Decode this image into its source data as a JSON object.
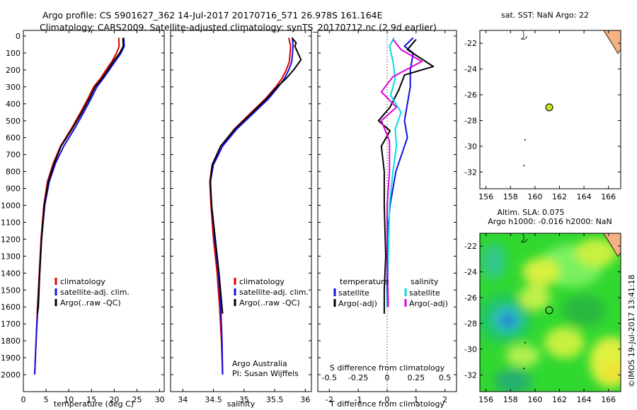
{
  "title": {
    "line1": "Argo profile: CS 5901627_362 14-Jul-2017 20170716_571 26.978S 161.164E",
    "line2": "Climatology: CARS2009. Satellite-adjusted climatology: synTS_20170712.nc (2.9d earlier)"
  },
  "credit": {
    "line1": "Argo Australia",
    "line2": "PI: Susan Wijffels",
    "watermark": "©IMOS 19-Jul-2017 13:41:18"
  },
  "colors": {
    "climatology": "#e00000",
    "satellite": "#1010e0",
    "argo": "#000000",
    "sat_salinity": "#00e0e0",
    "argo_salinity": "#e000e0",
    "land": "#f4b183"
  },
  "chart_data": [
    {
      "type": "line",
      "xlabel": "temperature (deg C)",
      "xlim": [
        0,
        31
      ],
      "xticks": [
        "0",
        "5",
        "10",
        "15",
        "20",
        "25",
        "30"
      ],
      "ylim": [
        0,
        2050
      ],
      "yticks": [
        "0",
        "100",
        "200",
        "300",
        "400",
        "500",
        "600",
        "700",
        "800",
        "900",
        "1000",
        "1100",
        "1200",
        "1300",
        "1400",
        "1500",
        "1600",
        "1700",
        "1800",
        "1900",
        "2000"
      ],
      "legend": [
        "climatology",
        "satellite-adj. clim.",
        "Argo(..raw -QC)"
      ],
      "series": [
        {
          "name": "climatology",
          "points": [
            [
              21,
              10
            ],
            [
              21.1,
              60
            ],
            [
              20.5,
              100
            ],
            [
              19.5,
              150
            ],
            [
              18.2,
              200
            ],
            [
              17,
              250
            ],
            [
              15.5,
              300
            ],
            [
              14.2,
              370
            ],
            [
              12.6,
              450
            ],
            [
              10.5,
              550
            ],
            [
              8.2,
              650
            ],
            [
              6.6,
              750
            ],
            [
              5.3,
              860
            ],
            [
              4.5,
              1000
            ],
            [
              3.9,
              1200
            ],
            [
              3.5,
              1400
            ],
            [
              3.1,
              1600
            ],
            [
              2.8,
              1800
            ],
            [
              2.5,
              2000
            ]
          ]
        },
        {
          "name": "satellite-adj. clim.",
          "points": [
            [
              22.1,
              10
            ],
            [
              22.2,
              60
            ],
            [
              21.5,
              100
            ],
            [
              20.2,
              150
            ],
            [
              18.9,
              200
            ],
            [
              17.6,
              250
            ],
            [
              16.2,
              300
            ],
            [
              14.9,
              370
            ],
            [
              13.3,
              450
            ],
            [
              11.2,
              550
            ],
            [
              8.9,
              650
            ],
            [
              7.1,
              750
            ],
            [
              5.7,
              860
            ],
            [
              4.7,
              1000
            ],
            [
              4.0,
              1200
            ],
            [
              3.6,
              1400
            ],
            [
              3.2,
              1600
            ],
            [
              2.8,
              1800
            ],
            [
              2.5,
              2000
            ]
          ]
        },
        {
          "name": "Argo(..raw -QC)",
          "points": [
            [
              21.9,
              10
            ],
            [
              22,
              60
            ],
            [
              21.2,
              100
            ],
            [
              19.8,
              150
            ],
            [
              18.6,
              200
            ],
            [
              17.3,
              250
            ],
            [
              15.8,
              300
            ],
            [
              14.5,
              370
            ],
            [
              12.9,
              450
            ],
            [
              10.7,
              550
            ],
            [
              8.3,
              650
            ],
            [
              6.8,
              750
            ],
            [
              5.5,
              860
            ],
            [
              4.6,
              1000
            ],
            [
              4.0,
              1200
            ],
            [
              3.6,
              1400
            ],
            [
              3.3,
              1600
            ],
            [
              3.1,
              1640
            ]
          ]
        }
      ]
    },
    {
      "type": "line",
      "xlabel": "salinity",
      "xlim": [
        33.8,
        36.1
      ],
      "xticks": [
        "34",
        "34.5",
        "35",
        "35.5",
        "36"
      ],
      "ylim": [
        0,
        2050
      ],
      "legend": [
        "climatology",
        "satellite-adj. clim.",
        "Argo(..raw -QC)"
      ],
      "series": [
        {
          "name": "climatology",
          "points": [
            [
              35.73,
              10
            ],
            [
              35.76,
              60
            ],
            [
              35.74,
              150
            ],
            [
              35.69,
              200
            ],
            [
              35.62,
              250
            ],
            [
              35.52,
              300
            ],
            [
              35.35,
              370
            ],
            [
              35.12,
              450
            ],
            [
              34.84,
              550
            ],
            [
              34.62,
              650
            ],
            [
              34.48,
              760
            ],
            [
              34.44,
              860
            ],
            [
              34.46,
              1000
            ],
            [
              34.5,
              1200
            ],
            [
              34.56,
              1400
            ],
            [
              34.6,
              1600
            ],
            [
              34.63,
              1800
            ],
            [
              34.65,
              2000
            ]
          ]
        },
        {
          "name": "satellite-adj. clim.",
          "points": [
            [
              35.79,
              10
            ],
            [
              35.8,
              60
            ],
            [
              35.78,
              150
            ],
            [
              35.73,
              200
            ],
            [
              35.66,
              250
            ],
            [
              35.56,
              300
            ],
            [
              35.4,
              370
            ],
            [
              35.17,
              450
            ],
            [
              34.88,
              550
            ],
            [
              34.65,
              650
            ],
            [
              34.5,
              760
            ],
            [
              34.45,
              860
            ],
            [
              34.47,
              1000
            ],
            [
              34.52,
              1200
            ],
            [
              34.58,
              1400
            ],
            [
              34.62,
              1600
            ],
            [
              34.64,
              1800
            ],
            [
              34.65,
              2000
            ]
          ]
        },
        {
          "name": "Argo(..raw -QC)",
          "points": [
            [
              35.78,
              10
            ],
            [
              35.85,
              40
            ],
            [
              35.83,
              60
            ],
            [
              35.93,
              140
            ],
            [
              35.81,
              200
            ],
            [
              35.69,
              250
            ],
            [
              35.54,
              300
            ],
            [
              35.37,
              370
            ],
            [
              35.14,
              450
            ],
            [
              34.85,
              550
            ],
            [
              34.62,
              650
            ],
            [
              34.48,
              760
            ],
            [
              34.45,
              860
            ],
            [
              34.47,
              1000
            ],
            [
              34.53,
              1200
            ],
            [
              34.59,
              1400
            ],
            [
              34.64,
              1600
            ],
            [
              34.65,
              1640
            ]
          ]
        }
      ]
    },
    {
      "type": "line",
      "xlabel": "T difference from climatology",
      "xlabel2": "S difference from climatology",
      "xlim": [
        -2.4,
        2.4
      ],
      "xticks": [
        "-2",
        "-1",
        "0",
        "1",
        "2"
      ],
      "xticks2": [
        "-0.5",
        "-0.25",
        "0",
        "0.25",
        "0.5"
      ],
      "ylim": [
        0,
        2050
      ],
      "legend_titles": [
        "temperature",
        "salinity"
      ],
      "legend": [
        "satellite",
        "Argo(-adj)",
        "satellite",
        "Argo(-adj)"
      ],
      "series": [
        {
          "name": "temperature satellite",
          "points": [
            [
              0.9,
              10
            ],
            [
              0.6,
              60
            ],
            [
              0.9,
              100
            ],
            [
              0.8,
              200
            ],
            [
              0.8,
              300
            ],
            [
              0.7,
              400
            ],
            [
              0.6,
              500
            ],
            [
              0.7,
              600
            ],
            [
              0.3,
              800
            ],
            [
              0.1,
              1000
            ],
            [
              0.0,
              1200
            ],
            [
              0.0,
              1600
            ]
          ]
        },
        {
          "name": "temperature Argo(-adj)",
          "points": [
            [
              1.0,
              20
            ],
            [
              0.7,
              80
            ],
            [
              1.6,
              180
            ],
            [
              0.6,
              230
            ],
            [
              0.4,
              320
            ],
            [
              0.1,
              420
            ],
            [
              -0.3,
              500
            ],
            [
              0.1,
              560
            ],
            [
              -0.2,
              650
            ],
            [
              -0.1,
              800
            ],
            [
              -0.1,
              1000
            ],
            [
              -0.05,
              1300
            ],
            [
              -0.1,
              1500
            ],
            [
              -0.1,
              1640
            ]
          ]
        },
        {
          "name": "salinity satellite",
          "points": [
            [
              0.06,
              10
            ],
            [
              0.02,
              60
            ],
            [
              0.05,
              150
            ],
            [
              0.07,
              250
            ],
            [
              0.03,
              350
            ],
            [
              0.12,
              450
            ],
            [
              0.07,
              550
            ],
            [
              0.08,
              650
            ],
            [
              0.05,
              800
            ],
            [
              0.02,
              1000
            ],
            [
              0.01,
              1300
            ],
            [
              0.0,
              1600
            ]
          ]
        },
        {
          "name": "salinity Argo(-adj)",
          "points": [
            [
              0.05,
              20
            ],
            [
              0.12,
              80
            ],
            [
              0.3,
              150
            ],
            [
              0.05,
              240
            ],
            [
              -0.05,
              330
            ],
            [
              0.08,
              420
            ],
            [
              -0.05,
              500
            ],
            [
              0.02,
              620
            ],
            [
              0.02,
              800
            ],
            [
              0.0,
              1000
            ],
            [
              0.0,
              1300
            ],
            [
              0.01,
              1600
            ]
          ]
        }
      ]
    },
    {
      "type": "scatter",
      "title": "sat. SST: NaN Argo: 22",
      "xlim": [
        155.5,
        167
      ],
      "ylim": [
        -33.3,
        -21
      ],
      "xticks": [
        "156",
        "158",
        "160",
        "162",
        "164",
        "166"
      ],
      "yticks": [
        "-22",
        "-24",
        "-26",
        "-28",
        "-30",
        "-32"
      ],
      "marker": {
        "lon": 161.164,
        "lat": -26.978
      }
    },
    {
      "type": "heatmap",
      "title": "Altim. SLA: 0.075",
      "title2": "Argo h1000: -0.016 h2000: NaN",
      "xlim": [
        155.5,
        167
      ],
      "ylim": [
        -33.3,
        -21
      ],
      "xticks": [
        "156",
        "158",
        "160",
        "162",
        "164",
        "166"
      ],
      "yticks": [
        "-22",
        "-24",
        "-26",
        "-28",
        "-30",
        "-32"
      ],
      "marker": {
        "lon": 161.164,
        "lat": -26.978
      }
    }
  ]
}
